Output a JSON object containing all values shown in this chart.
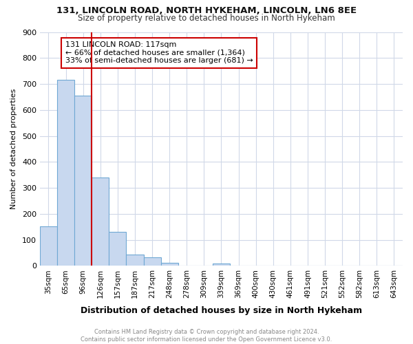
{
  "title1": "131, LINCOLN ROAD, NORTH HYKEHAM, LINCOLN, LN6 8EE",
  "title2": "Size of property relative to detached houses in North Hykeham",
  "xlabel": "Distribution of detached houses by size in North Hykeham",
  "ylabel": "Number of detached properties",
  "categories": [
    "35sqm",
    "65sqm",
    "96sqm",
    "126sqm",
    "157sqm",
    "187sqm",
    "217sqm",
    "248sqm",
    "278sqm",
    "309sqm",
    "339sqm",
    "369sqm",
    "400sqm",
    "430sqm",
    "461sqm",
    "491sqm",
    "521sqm",
    "552sqm",
    "582sqm",
    "613sqm",
    "643sqm"
  ],
  "values": [
    152,
    715,
    655,
    340,
    130,
    43,
    32,
    12,
    0,
    0,
    8,
    0,
    0,
    0,
    0,
    0,
    0,
    0,
    0,
    0,
    0
  ],
  "bar_color": "#c8d8ef",
  "bar_edge_color": "#6fa8d4",
  "vline_color": "#cc0000",
  "annotation_text": "131 LINCOLN ROAD: 117sqm\n← 66% of detached houses are smaller (1,364)\n33% of semi-detached houses are larger (681) →",
  "annotation_box_color": "#ffffff",
  "annotation_box_edge": "#cc0000",
  "ylim": [
    0,
    900
  ],
  "yticks": [
    0,
    100,
    200,
    300,
    400,
    500,
    600,
    700,
    800,
    900
  ],
  "footer": "Contains HM Land Registry data © Crown copyright and database right 2024.\nContains public sector information licensed under the Open Government Licence v3.0.",
  "bg_color": "#ffffff",
  "plot_bg_color": "#ffffff",
  "grid_color": "#d0d8e8"
}
